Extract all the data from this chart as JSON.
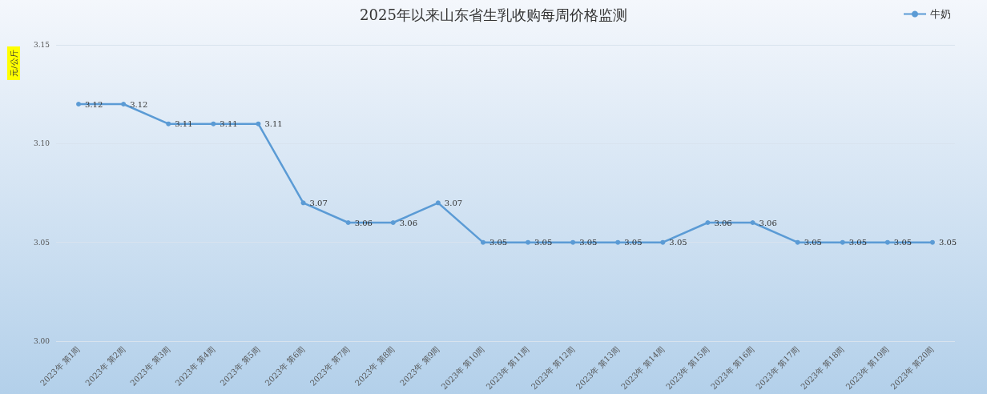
{
  "chart_data": {
    "type": "line",
    "title": "2025年以来山东省生乳收购每周价格监测",
    "ylabel": "元/公斤",
    "categories": [
      "2023年 第1周",
      "2023年 第2周",
      "2023年 第3周",
      "2023年 第4周",
      "2023年 第5周",
      "2023年 第6周",
      "2023年 第7周",
      "2023年 第8周",
      "2023年 第9周",
      "2023年 第10周",
      "2023年 第11周",
      "2023年 第12周",
      "2023年 第13周",
      "2023年 第14周",
      "2023年 第15周",
      "2023年 第16周",
      "2023年 第17周",
      "2023年 第18周",
      "2023年 第19周",
      "2023年 第20周"
    ],
    "series": [
      {
        "name": "牛奶",
        "color": "#5b9bd5",
        "values": [
          3.12,
          3.12,
          3.11,
          3.11,
          3.11,
          3.07,
          3.06,
          3.06,
          3.07,
          3.05,
          3.05,
          3.05,
          3.05,
          3.05,
          3.06,
          3.06,
          3.05,
          3.05,
          3.05,
          3.05
        ]
      }
    ],
    "ylim": [
      3.0,
      3.15
    ],
    "yticks": [
      {
        "value": 3.0,
        "label": "3.00"
      },
      {
        "value": 3.05,
        "label": "3.05"
      },
      {
        "value": 3.1,
        "label": "3.10"
      },
      {
        "value": 3.15,
        "label": "3.15"
      }
    ],
    "grid": "y",
    "legend": "top right",
    "marker": "circle",
    "line_style": "solid",
    "data_labels": true
  }
}
